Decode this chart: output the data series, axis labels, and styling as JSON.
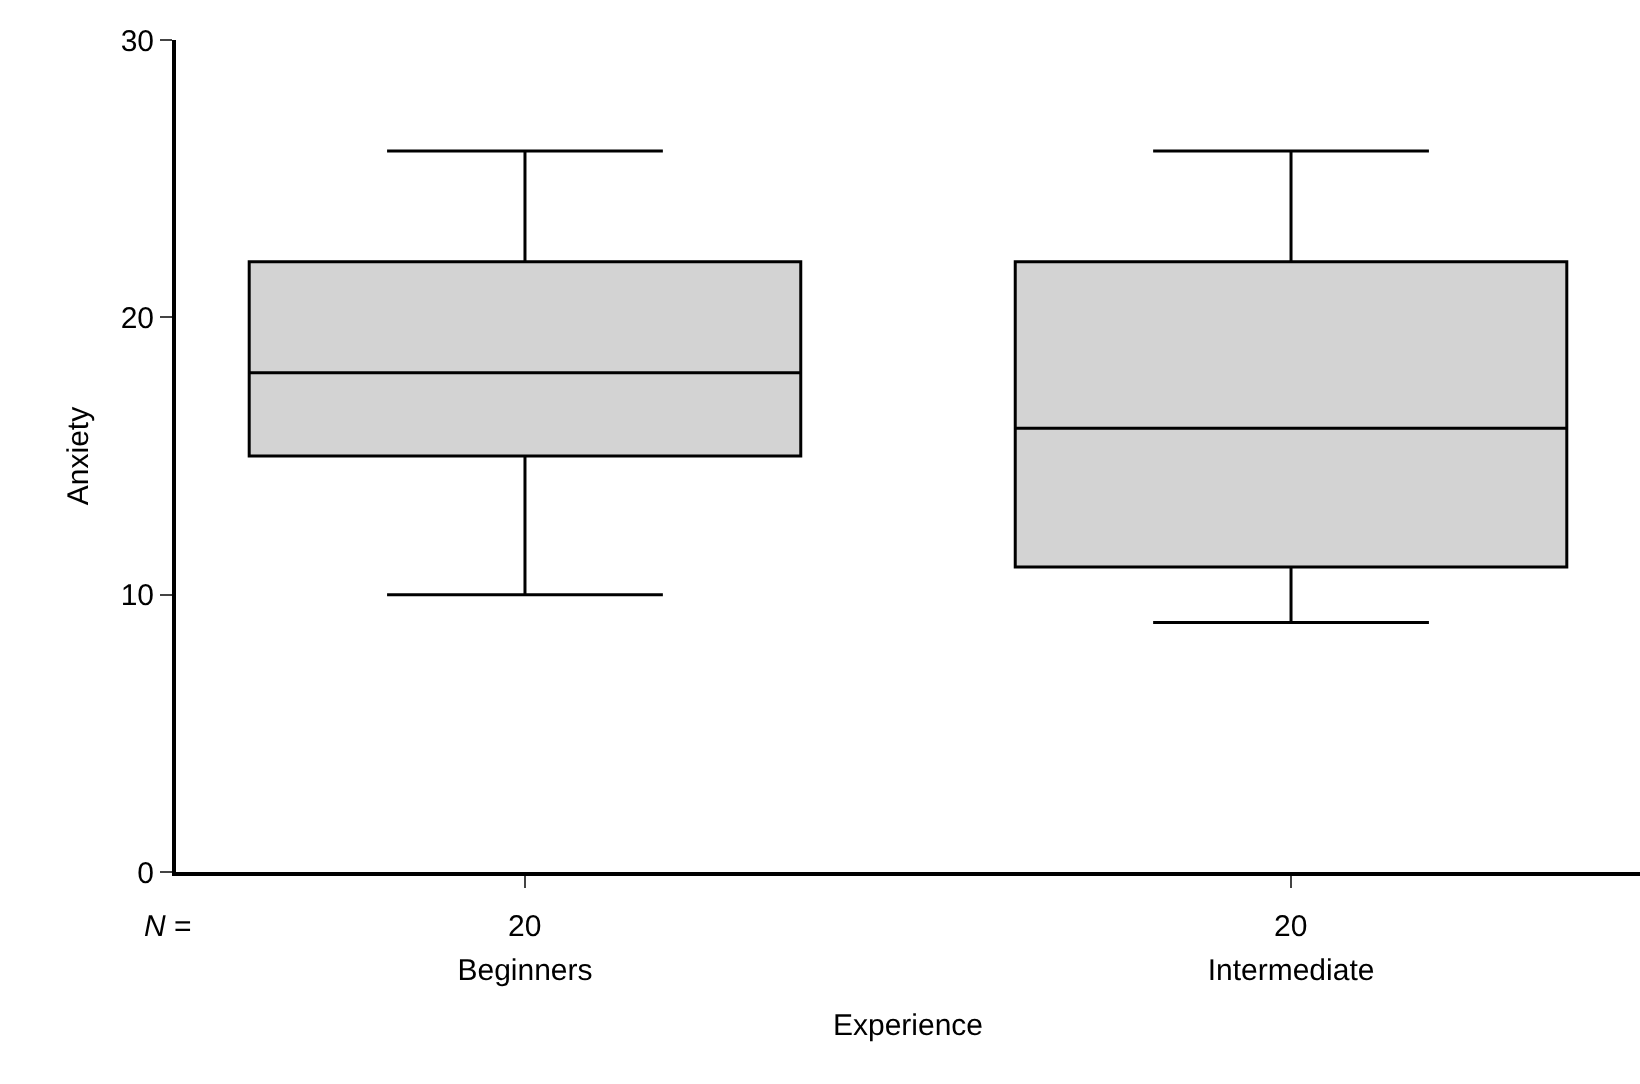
{
  "chart_data": {
    "type": "box",
    "categories": [
      "Beginners",
      "Intermediate"
    ],
    "boxes": [
      {
        "low": 10,
        "q1": 15,
        "median": 18,
        "q3": 22,
        "high": 26
      },
      {
        "low": 9,
        "q1": 11,
        "median": 16,
        "q3": 22,
        "high": 26
      }
    ],
    "color": "#d3d3d3",
    "xlabel": "Experience",
    "ylabel": "Anxiety",
    "ylim": [
      0,
      30
    ],
    "yticks": [
      0,
      10,
      20,
      30
    ],
    "grid": false,
    "annotations": [
      "N =",
      {
        "text": "20",
        "x": "Beginners"
      },
      {
        "text": "20",
        "x": "Intermediate"
      }
    ]
  }
}
